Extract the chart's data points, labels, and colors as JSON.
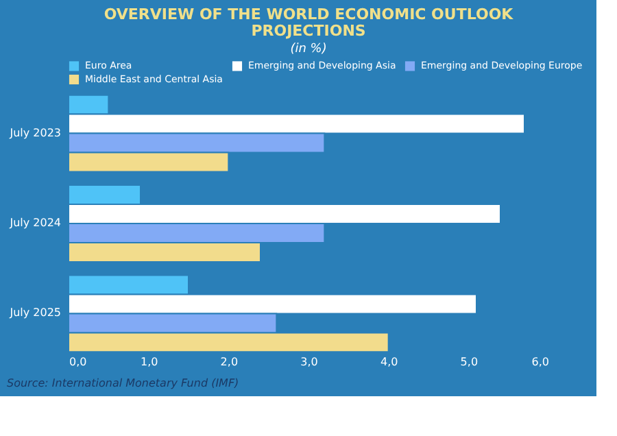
{
  "chart_data": {
    "type": "bar",
    "orientation": "horizontal",
    "title": "OVERVIEW OF THE WORLD ECONOMIC OUTLOOK PROJECTIONS",
    "subtitle": "(in %)",
    "categories": [
      "July 2023",
      "July 2024",
      "July 2025"
    ],
    "series": [
      {
        "name": "Euro Area",
        "color": "#4fc3f7",
        "values": [
          0.5,
          0.9,
          1.5
        ]
      },
      {
        "name": "Emerging and Developing Asia",
        "color": "#ffffff",
        "values": [
          5.7,
          5.4,
          5.1
        ]
      },
      {
        "name": "Emerging and Developing Europe",
        "color": "#82aaf5",
        "values": [
          3.2,
          3.2,
          2.6
        ]
      },
      {
        "name": "Middle East and Central Asia",
        "color": "#f2dc8c",
        "values": [
          2.0,
          2.4,
          4.0
        ]
      }
    ],
    "xlim": [
      0,
      6
    ],
    "xticks": [
      {
        "value": 0,
        "label": "0,0"
      },
      {
        "value": 1,
        "label": "1,0"
      },
      {
        "value": 2,
        "label": "2,0"
      },
      {
        "value": 3,
        "label": "3,0"
      },
      {
        "value": 4,
        "label": "4,0"
      },
      {
        "value": 5,
        "label": "5,0"
      },
      {
        "value": 6,
        "label": "6,0"
      }
    ],
    "grid": false,
    "legend": "top",
    "annotations": [
      "Source: International Monetary Fund (IMF)"
    ]
  }
}
